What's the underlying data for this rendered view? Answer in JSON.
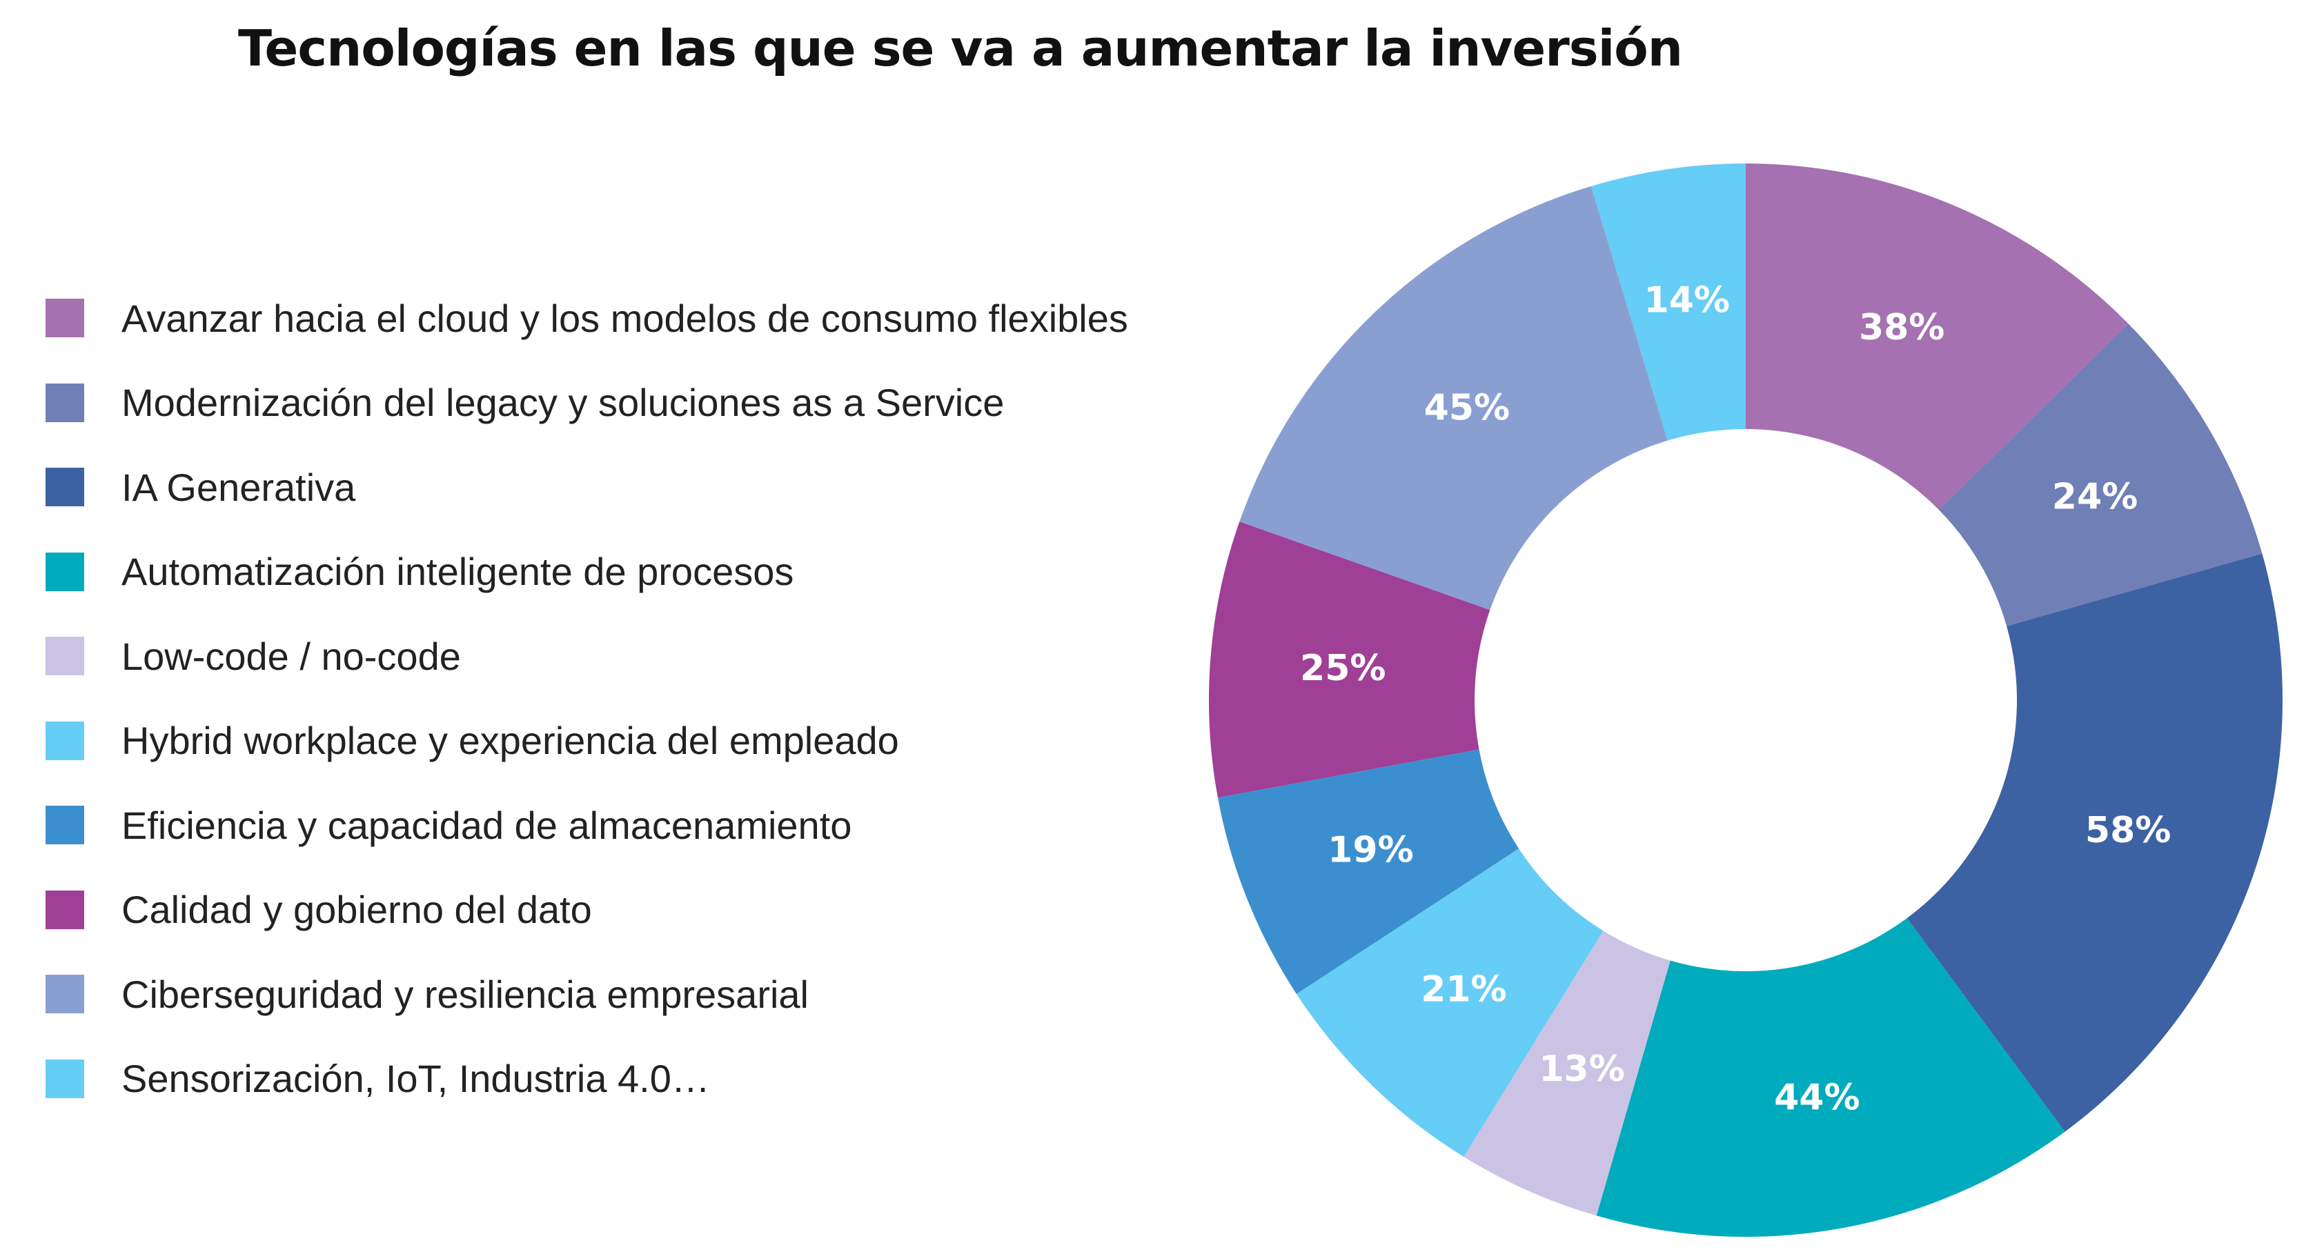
{
  "chart_data": {
    "type": "pie",
    "variant": "donut",
    "title": "Tecnologías en las que se va a aumentar la inversión",
    "legend_position": "left",
    "slices": [
      {
        "label": "Avanzar hacia el cloud y los modelos de consumo flexibles",
        "value": 38,
        "display": "38%",
        "color": "#a571b0"
      },
      {
        "label": "Modernización del legacy y soluciones as a Service",
        "value": 24,
        "display": "24%",
        "color": "#707fb5"
      },
      {
        "label": "IA Generativa",
        "value": 58,
        "display": "58%",
        "color": "#3d62a3"
      },
      {
        "label": "Automatización inteligente de procesos",
        "value": 44,
        "display": "44%",
        "color": "#00abbe"
      },
      {
        "label": "Low-code / no-code",
        "value": 13,
        "display": "13%",
        "color": "#cbc3e3"
      },
      {
        "label": "Hybrid workplace y experiencia del empleado",
        "value": 21,
        "display": "21%",
        "color": "#65cdf6"
      },
      {
        "label": "Eficiencia y capacidad de almacenamiento",
        "value": 19,
        "display": "19%",
        "color": "#3c8fce"
      },
      {
        "label": "Calidad y gobierno del dato",
        "value": 25,
        "display": "25%",
        "color": "#a03f96"
      },
      {
        "label": "Ciberseguridad y resiliencia empresarial",
        "value": 45,
        "display": "45%",
        "color": "#8a9fd1"
      },
      {
        "label": "Sensorización, IoT, Industria 4.0…",
        "value": 14,
        "display": "14%",
        "color": "#65cdf6"
      }
    ]
  }
}
